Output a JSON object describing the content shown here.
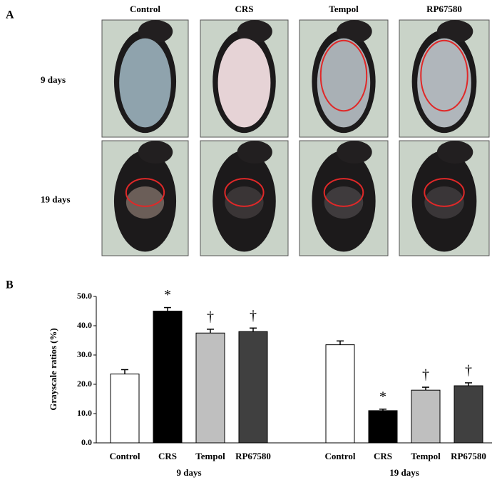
{
  "panel_a": {
    "label": "A",
    "columns": [
      "Control",
      "CRS",
      "Tempol",
      "RP67580"
    ],
    "rows": [
      "9 days",
      "19 days"
    ]
  },
  "chart_data": {
    "type": "bar",
    "label": "B",
    "y_label": "Grayscale ratios (%)",
    "ylim": [
      0,
      50
    ],
    "yticks": [
      {
        "value": 0,
        "label": "0.0"
      },
      {
        "value": 10,
        "label": "10.0"
      },
      {
        "value": 20,
        "label": "20.0"
      },
      {
        "value": 30,
        "label": "30.0"
      },
      {
        "value": 40,
        "label": "40.0"
      },
      {
        "value": 50,
        "label": "50.0"
      }
    ],
    "colors": [
      "#ffffff",
      "#000000",
      "#bfbfbf",
      "#404040"
    ],
    "groups": [
      {
        "name": "9 days",
        "categories": [
          "Control",
          "CRS",
          "Tempol",
          "RP67580"
        ],
        "values": [
          23.5,
          45,
          37.5,
          38
        ],
        "errors": [
          1.5,
          1.2,
          1.3,
          1.2
        ],
        "annotations": [
          null,
          "*",
          "†",
          "†"
        ]
      },
      {
        "name": "19 days",
        "categories": [
          "Control",
          "CRS",
          "Tempol",
          "RP67580"
        ],
        "values": [
          33.5,
          11,
          18,
          19.5
        ],
        "errors": [
          1.3,
          0.5,
          1,
          1
        ],
        "annotations": [
          null,
          "*",
          "†",
          "†"
        ]
      }
    ]
  }
}
